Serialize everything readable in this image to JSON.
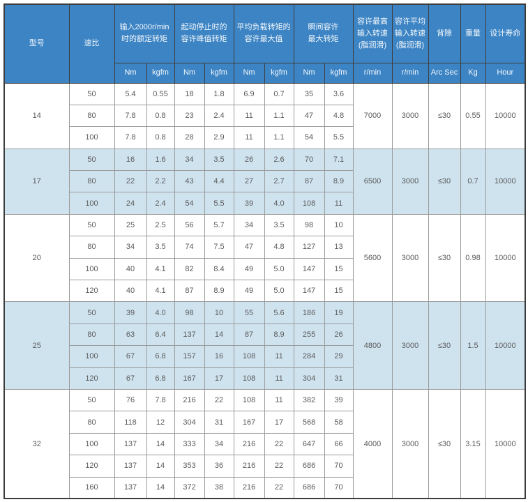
{
  "colors": {
    "header_bg": "#3d84c4",
    "alt_row_bg": "#cfe3ef",
    "header_text": "#f2f8fc",
    "body_text": "#5a5a5a",
    "grid_line": "#9a9a9a",
    "outer_border": "#3c3c3c"
  },
  "table": {
    "headers": {
      "model": "型号",
      "ratio": "速比",
      "groups": [
        {
          "label": "输入2000r/min\n时的额定转矩",
          "units": [
            "Nm",
            "kgfm"
          ]
        },
        {
          "label": "起动停止时的\n容许峰值转矩",
          "units": [
            "Nm",
            "kgfm"
          ]
        },
        {
          "label": "平均负载转矩的\n容许最大值",
          "units": [
            "Nm",
            "kgfm"
          ]
        },
        {
          "label": "瞬间容许\n最大转矩",
          "units": [
            "Nm",
            "kgfm"
          ]
        }
      ],
      "singles": [
        {
          "label": "容许最高\n输入转速\n(脂润滑)",
          "unit": "r/min"
        },
        {
          "label": "容许平均\n输入转速\n(脂润滑)",
          "unit": "r/min"
        },
        {
          "label": "背隙",
          "unit": "Arc Sec"
        },
        {
          "label": "重量",
          "unit": "Kg"
        },
        {
          "label": "设计寿命",
          "unit": "Hour"
        }
      ]
    },
    "groups": [
      {
        "model": "14",
        "rows": [
          {
            "ratio": "50",
            "values": [
              "5.4",
              "0.55",
              "18",
              "1.8",
              "6.9",
              "0.7",
              "35",
              "3.6"
            ]
          },
          {
            "ratio": "80",
            "values": [
              "7.8",
              "0.8",
              "23",
              "2.4",
              "11",
              "1.1",
              "47",
              "4.8"
            ]
          },
          {
            "ratio": "100",
            "values": [
              "7.8",
              "0.8",
              "28",
              "2.9",
              "11",
              "1.1",
              "54",
              "5.5"
            ]
          }
        ],
        "merged": [
          "7000",
          "3000",
          "≤30",
          "0.55",
          "10000"
        ]
      },
      {
        "model": "17",
        "rows": [
          {
            "ratio": "50",
            "values": [
              "16",
              "1.6",
              "34",
              "3.5",
              "26",
              "2.6",
              "70",
              "7.1"
            ]
          },
          {
            "ratio": "80",
            "values": [
              "22",
              "2.2",
              "43",
              "4.4",
              "27",
              "2.7",
              "87",
              "8.9"
            ]
          },
          {
            "ratio": "100",
            "values": [
              "24",
              "2.4",
              "54",
              "5.5",
              "39",
              "4.0",
              "108",
              "11"
            ]
          }
        ],
        "merged": [
          "6500",
          "3000",
          "≤30",
          "0.7",
          "10000"
        ]
      },
      {
        "model": "20",
        "rows": [
          {
            "ratio": "50",
            "values": [
              "25",
              "2.5",
              "56",
              "5.7",
              "34",
              "3.5",
              "98",
              "10"
            ]
          },
          {
            "ratio": "80",
            "values": [
              "34",
              "3.5",
              "74",
              "7.5",
              "47",
              "4.8",
              "127",
              "13"
            ]
          },
          {
            "ratio": "100",
            "values": [
              "40",
              "4.1",
              "82",
              "8.4",
              "49",
              "5.0",
              "147",
              "15"
            ]
          },
          {
            "ratio": "120",
            "values": [
              "40",
              "4.1",
              "87",
              "8.9",
              "49",
              "5.0",
              "147",
              "15"
            ]
          }
        ],
        "merged": [
          "5600",
          "3000",
          "≤30",
          "0.98",
          "10000"
        ]
      },
      {
        "model": "25",
        "rows": [
          {
            "ratio": "50",
            "values": [
              "39",
              "4.0",
              "98",
              "10",
              "55",
              "5.6",
              "186",
              "19"
            ]
          },
          {
            "ratio": "80",
            "values": [
              "63",
              "6.4",
              "137",
              "14",
              "87",
              "8.9",
              "255",
              "26"
            ]
          },
          {
            "ratio": "100",
            "values": [
              "67",
              "6.8",
              "157",
              "16",
              "108",
              "11",
              "284",
              "29"
            ]
          },
          {
            "ratio": "120",
            "values": [
              "67",
              "6.8",
              "167",
              "17",
              "108",
              "11",
              "304",
              "31"
            ]
          }
        ],
        "merged": [
          "4800",
          "3000",
          "≤30",
          "1.5",
          "10000"
        ]
      },
      {
        "model": "32",
        "rows": [
          {
            "ratio": "50",
            "values": [
              "76",
              "7.8",
              "216",
              "22",
              "108",
              "11",
              "382",
              "39"
            ]
          },
          {
            "ratio": "80",
            "values": [
              "118",
              "12",
              "304",
              "31",
              "167",
              "17",
              "568",
              "58"
            ]
          },
          {
            "ratio": "100",
            "values": [
              "137",
              "14",
              "333",
              "34",
              "216",
              "22",
              "647",
              "66"
            ]
          },
          {
            "ratio": "120",
            "values": [
              "137",
              "14",
              "353",
              "36",
              "216",
              "22",
              "686",
              "70"
            ]
          },
          {
            "ratio": "160",
            "values": [
              "137",
              "14",
              "372",
              "38",
              "216",
              "22",
              "686",
              "70"
            ]
          }
        ],
        "merged": [
          "4000",
          "3000",
          "≤30",
          "3.15",
          "10000"
        ]
      }
    ]
  }
}
